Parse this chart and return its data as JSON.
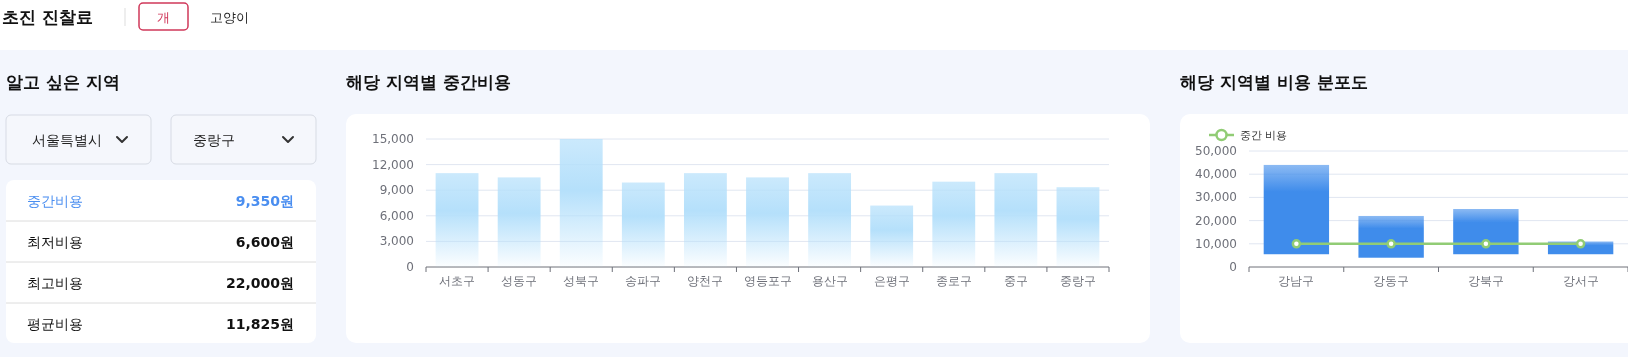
{
  "chart_data": [
    {
      "type": "other",
      "title": "초진 진찰료",
      "annotations": [
        "개",
        "고양이",
        "알고 싶은 지역",
        "서울특별시",
        "중랑구",
        "중간비용",
        "9,350원",
        "최저비용",
        "6,600원",
        "최고비용",
        "22,000원",
        "평균비용",
        "11,825원"
      ]
    },
    {
      "type": "bar",
      "title": "해당 지역별 중간비용",
      "categories": [
        "서초구",
        "성동구",
        "성북구",
        "송파구",
        "양천구",
        "영등포구",
        "용산구",
        "은평구",
        "종로구",
        "중구",
        "중랑구"
      ],
      "values": [
        11000,
        10500,
        15000,
        9900,
        11000,
        10500,
        11000,
        7200,
        10000,
        11000,
        9350
      ],
      "color": "#b5e0fb",
      "ylim": [
        0,
        15000
      ],
      "yticks": [
        0,
        {
          "value": 3000,
          "label": "3,000"
        },
        {
          "value": 6000,
          "label": "6,000"
        },
        {
          "value": 9000,
          "label": "9,000"
        },
        {
          "value": 12000,
          "label": "12,000"
        },
        {
          "value": 15000,
          "label": "15,000"
        }
      ],
      "grid": "y"
    },
    {
      "type": "bar",
      "title": "해당 지역별 비용 분포도",
      "categories": [
        "강남구",
        "강동구",
        "강북구",
        "강서구"
      ],
      "series": [
        {
          "color": "#3f8ceb",
          "base": [
            5500,
            4000,
            5500,
            5500
          ],
          "values": [
            38500,
            18000,
            19500,
            5500
          ]
        },
        {
          "name": "중간 비용",
          "type": "line",
          "color": "#91cc75",
          "values": [
            10000,
            10000,
            10000,
            10000
          ]
        }
      ],
      "marker": "circle",
      "legend": "top left",
      "ylim": [
        0,
        50000
      ],
      "yticks": [
        0,
        {
          "value": 10000,
          "label": "10,000"
        },
        {
          "value": 20000,
          "label": "20,000"
        },
        {
          "value": 30000,
          "label": "30,000"
        },
        {
          "value": 40000,
          "label": "40,000"
        },
        {
          "value": 50000,
          "label": "50,000"
        }
      ],
      "grid": "y"
    }
  ]
}
